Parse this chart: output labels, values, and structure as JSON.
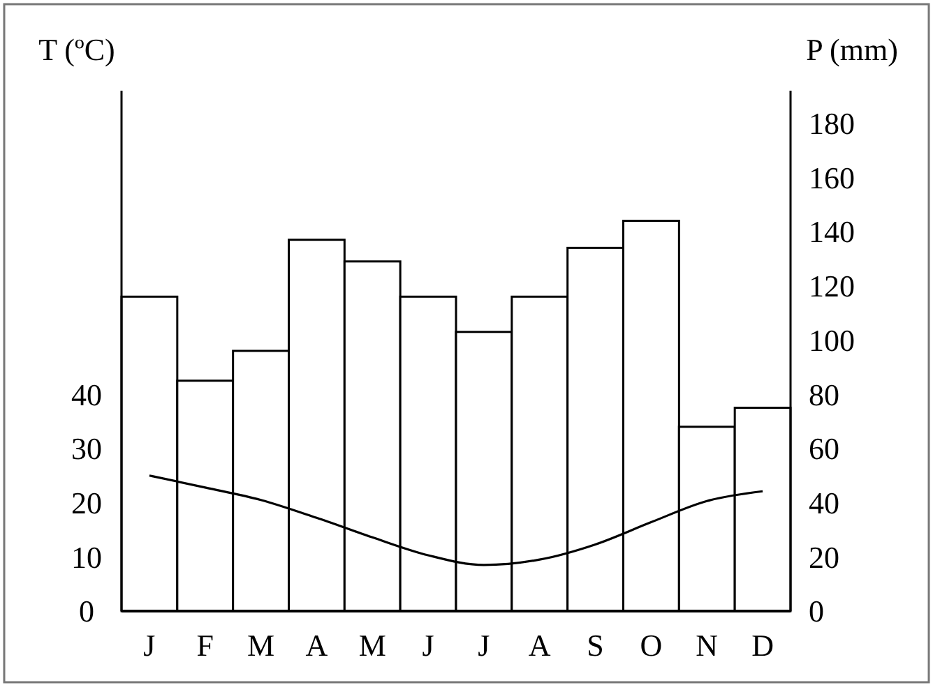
{
  "chart_data": {
    "type": "bar",
    "categories": [
      "J",
      "F",
      "M",
      "A",
      "M",
      "J",
      "J",
      "A",
      "S",
      "O",
      "N",
      "D"
    ],
    "ylabel": "T (ºC)",
    "y2label": "P (mm)",
    "ylim": [
      0,
      96
    ],
    "yticks": [
      0,
      10,
      20,
      30,
      40
    ],
    "y2lim": [
      0,
      192
    ],
    "y2ticks": [
      0,
      20,
      40,
      60,
      80,
      100,
      120,
      140,
      160,
      180
    ],
    "series": [
      {
        "axis": "y2",
        "color": "#ffffff",
        "values": [
          116,
          85,
          96,
          137,
          129,
          116,
          103,
          116,
          134,
          144,
          68,
          75
        ]
      },
      {
        "type": "line",
        "axis": "y",
        "color": "#000000",
        "values": [
          25,
          22.8,
          20.5,
          17.2,
          13.6,
          10.3,
          8.5,
          9.5,
          12.3,
          16.4,
          20.3,
          22.1
        ]
      }
    ],
    "grid": false,
    "marker": "none"
  }
}
